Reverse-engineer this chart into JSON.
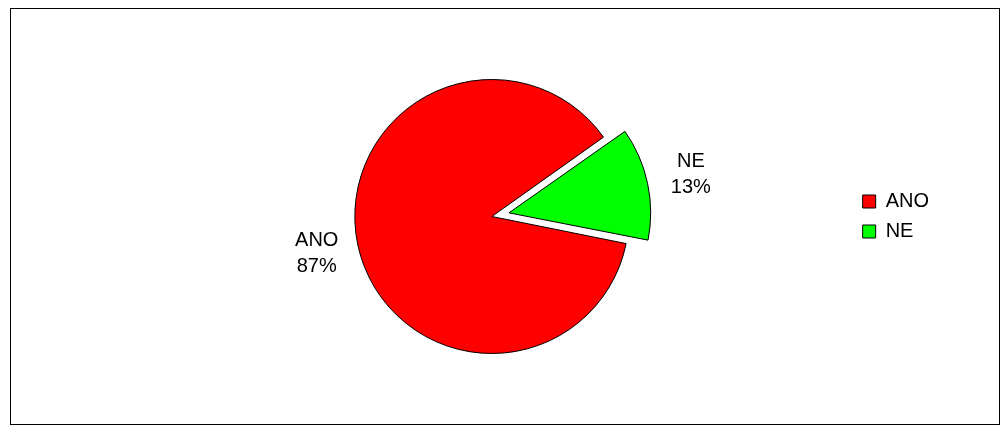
{
  "chart_data": {
    "type": "pie",
    "categories": [
      "ANO",
      "NE"
    ],
    "values": [
      87,
      13
    ],
    "colors": [
      "#ff0000",
      "#00ff00"
    ],
    "value_labels": [
      "87%",
      "13%"
    ],
    "legend": "right"
  }
}
